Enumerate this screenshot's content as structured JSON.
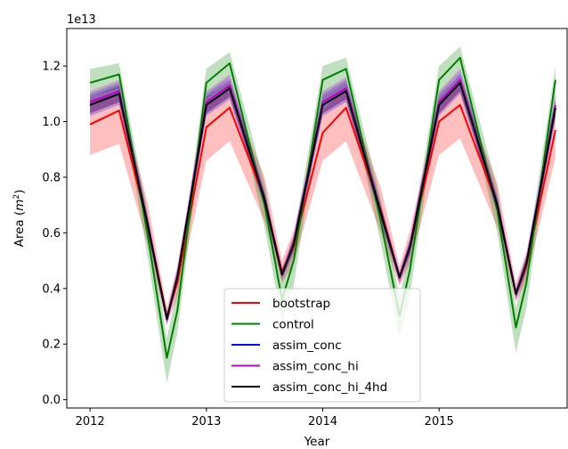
{
  "chart_data": {
    "type": "line",
    "title": "",
    "xlabel": "Year",
    "ylabel": "Area",
    "ylabel_unit": "m",
    "ylabel_unit_exp": "2",
    "y_offset_label": "1e13",
    "xlim": [
      2011.8,
      2016.1
    ],
    "ylim": [
      -0.03,
      1.335
    ],
    "x_ticks": [
      2012,
      2013,
      2014,
      2015
    ],
    "x_tick_labels": [
      "2012",
      "2013",
      "2014",
      "2015"
    ],
    "y_ticks": [
      0.0,
      0.2,
      0.4,
      0.6,
      0.8,
      1.0,
      1.2
    ],
    "y_tick_labels": [
      "0.0",
      "0.2",
      "0.4",
      "0.6",
      "0.8",
      "1.0",
      "1.2"
    ],
    "grid": false,
    "legend_position": "lower center",
    "x": [
      2012.0,
      2012.25,
      2012.5,
      2012.66,
      2012.75,
      2013.0,
      2013.2,
      2013.5,
      2013.65,
      2013.75,
      2014.0,
      2014.2,
      2014.5,
      2014.66,
      2014.75,
      2015.0,
      2015.18,
      2015.5,
      2015.66,
      2015.75,
      2016.0
    ],
    "series": [
      {
        "name": "bootstrap",
        "color": "#ff0000",
        "values": [
          0.99,
          1.04,
          0.62,
          0.3,
          0.42,
          0.98,
          1.05,
          0.72,
          0.46,
          0.55,
          0.96,
          1.05,
          0.68,
          0.44,
          0.55,
          1.0,
          1.06,
          0.7,
          0.38,
          0.48,
          0.97
        ],
        "band_lower": [
          0.88,
          0.92,
          0.55,
          0.27,
          0.37,
          0.86,
          0.93,
          0.64,
          0.42,
          0.49,
          0.86,
          0.93,
          0.6,
          0.41,
          0.49,
          0.88,
          0.94,
          0.62,
          0.35,
          0.43,
          0.87
        ],
        "band_upper": [
          1.08,
          1.1,
          0.7,
          0.33,
          0.48,
          1.06,
          1.12,
          0.8,
          0.5,
          0.61,
          1.04,
          1.12,
          0.76,
          0.48,
          0.61,
          1.08,
          1.13,
          0.78,
          0.42,
          0.53,
          1.05
        ]
      },
      {
        "name": "control",
        "color": "#008000",
        "values": [
          1.14,
          1.17,
          0.58,
          0.15,
          0.32,
          1.14,
          1.21,
          0.7,
          0.36,
          0.5,
          1.15,
          1.19,
          0.64,
          0.3,
          0.47,
          1.15,
          1.23,
          0.68,
          0.26,
          0.42,
          1.15
        ],
        "band_lower": [
          1.09,
          1.12,
          0.5,
          0.06,
          0.24,
          1.08,
          1.16,
          0.62,
          0.28,
          0.41,
          1.09,
          1.14,
          0.56,
          0.22,
          0.38,
          1.09,
          1.18,
          0.6,
          0.17,
          0.33,
          1.09
        ],
        "band_upper": [
          1.19,
          1.21,
          0.66,
          0.22,
          0.4,
          1.19,
          1.25,
          0.78,
          0.43,
          0.58,
          1.2,
          1.23,
          0.72,
          0.37,
          0.55,
          1.2,
          1.27,
          0.76,
          0.33,
          0.5,
          1.2
        ]
      },
      {
        "name": "assim_conc",
        "color": "#0000ff",
        "values": [
          1.06,
          1.1,
          0.62,
          0.29,
          0.44,
          1.06,
          1.12,
          0.72,
          0.45,
          0.56,
          1.06,
          1.11,
          0.67,
          0.44,
          0.55,
          1.06,
          1.14,
          0.7,
          0.38,
          0.49,
          1.05
        ],
        "band_lower": [
          1.02,
          1.06,
          0.59,
          0.27,
          0.41,
          1.02,
          1.08,
          0.69,
          0.43,
          0.53,
          1.02,
          1.07,
          0.64,
          0.42,
          0.52,
          1.02,
          1.1,
          0.67,
          0.36,
          0.46,
          1.01
        ],
        "band_upper": [
          1.1,
          1.14,
          0.65,
          0.31,
          0.47,
          1.1,
          1.16,
          0.75,
          0.47,
          0.59,
          1.1,
          1.15,
          0.7,
          0.46,
          0.58,
          1.1,
          1.18,
          0.73,
          0.4,
          0.52,
          1.09
        ]
      },
      {
        "name": "assim_conc_hi",
        "color": "#bf00bf",
        "values": [
          1.07,
          1.11,
          0.62,
          0.29,
          0.44,
          1.07,
          1.13,
          0.72,
          0.45,
          0.56,
          1.07,
          1.12,
          0.67,
          0.44,
          0.55,
          1.07,
          1.15,
          0.7,
          0.38,
          0.49,
          1.06
        ],
        "band_lower": [
          1.03,
          1.07,
          0.59,
          0.27,
          0.41,
          1.03,
          1.09,
          0.69,
          0.43,
          0.53,
          1.03,
          1.08,
          0.64,
          0.42,
          0.52,
          1.03,
          1.11,
          0.67,
          0.36,
          0.46,
          1.02
        ],
        "band_upper": [
          1.11,
          1.15,
          0.65,
          0.31,
          0.47,
          1.11,
          1.17,
          0.75,
          0.47,
          0.59,
          1.11,
          1.16,
          0.7,
          0.46,
          0.58,
          1.11,
          1.19,
          0.73,
          0.4,
          0.52,
          1.1
        ]
      },
      {
        "name": "assim_conc_hi_4hd",
        "color": "#000000",
        "values": [
          1.06,
          1.1,
          0.62,
          0.29,
          0.44,
          1.06,
          1.12,
          0.72,
          0.45,
          0.56,
          1.06,
          1.11,
          0.67,
          0.44,
          0.55,
          1.06,
          1.14,
          0.7,
          0.38,
          0.49,
          1.05
        ],
        "band_lower": [
          1.03,
          1.07,
          0.6,
          0.28,
          0.42,
          1.03,
          1.09,
          0.7,
          0.44,
          0.54,
          1.03,
          1.08,
          0.65,
          0.43,
          0.53,
          1.03,
          1.11,
          0.68,
          0.37,
          0.47,
          1.02
        ],
        "band_upper": [
          1.09,
          1.13,
          0.64,
          0.3,
          0.46,
          1.09,
          1.15,
          0.74,
          0.46,
          0.58,
          1.09,
          1.14,
          0.69,
          0.45,
          0.57,
          1.09,
          1.17,
          0.72,
          0.39,
          0.51,
          1.08
        ]
      }
    ]
  }
}
